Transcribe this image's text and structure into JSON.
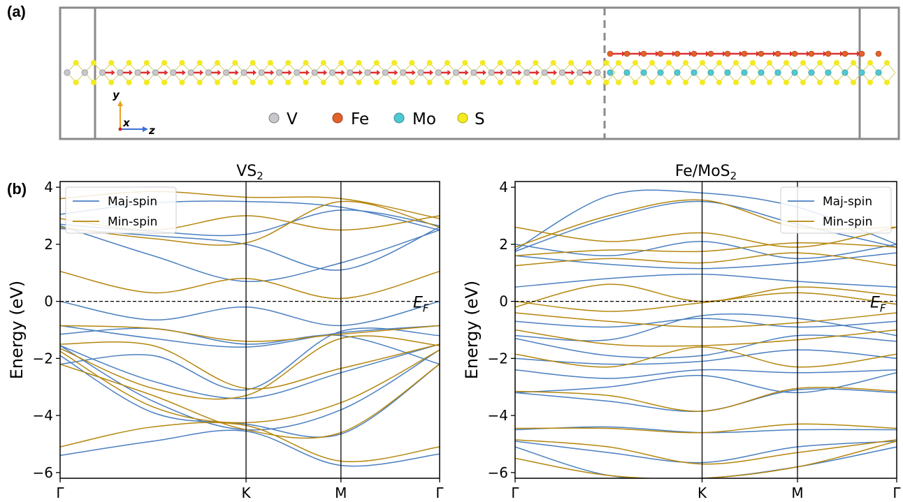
{
  "panel_labels": {
    "a": "(a)",
    "b": "(b)"
  },
  "structure": {
    "axes": {
      "y": "y",
      "x": "x",
      "z": "z"
    },
    "legend": [
      {
        "symbol": "V",
        "label": "V",
        "color": "#c8c8cc"
      },
      {
        "symbol": "Fe",
        "label": "Fe",
        "color": "#e2622a"
      },
      {
        "symbol": "Mo",
        "label": "Mo",
        "color": "#4fc9d4"
      },
      {
        "symbol": "S",
        "label": "S",
        "color": "#f3ea21"
      }
    ]
  },
  "colors": {
    "maj": "#4a7fc0",
    "min": "#b5860d"
  },
  "chart_data": [
    {
      "type": "line",
      "title": "VS",
      "title_sub": "2",
      "ylabel": "Energy (eV)",
      "ylim": [
        -6.2,
        4.2
      ],
      "yticks": [
        -6,
        -4,
        -2,
        0,
        2,
        4
      ],
      "ytick_labels": [
        "−6",
        "−4",
        "−2",
        "0",
        "2",
        "4"
      ],
      "kpath_labels": [
        "Γ",
        "K",
        "M",
        "Γ"
      ],
      "kpath_positions": [
        0,
        0.49,
        0.74,
        1.0
      ],
      "fermi_label": "E",
      "fermi_sub": "F",
      "fermi_level": 0,
      "legend": {
        "maj": "Maj-spin",
        "min": "Min-spin",
        "position": "top-left"
      },
      "series": [
        {
          "spin": "maj",
          "y": [
            2.65,
            1.6,
            0.7,
            1.35,
            2.5
          ]
        },
        {
          "spin": "maj",
          "y": [
            2.55,
            2.3,
            2.0,
            1.1,
            2.6
          ]
        },
        {
          "spin": "maj",
          "y": [
            2.7,
            2.45,
            2.35,
            3.2,
            2.65
          ]
        },
        {
          "spin": "maj",
          "y": [
            3.05,
            3.45,
            3.5,
            3.3,
            2.5
          ]
        },
        {
          "spin": "maj",
          "y": [
            0.0,
            -0.65,
            -0.2,
            -0.85,
            0.0
          ]
        },
        {
          "spin": "maj",
          "y": [
            -0.85,
            -1.3,
            -1.6,
            -1.1,
            -0.85
          ]
        },
        {
          "spin": "maj",
          "y": [
            -1.15,
            -0.95,
            -1.5,
            -1.2,
            -2.2
          ]
        },
        {
          "spin": "maj",
          "y": [
            -2.2,
            -1.9,
            -3.1,
            -1.05,
            -1.2
          ]
        },
        {
          "spin": "maj",
          "y": [
            -1.55,
            -2.8,
            -3.4,
            -2.5,
            -1.5
          ]
        },
        {
          "spin": "maj",
          "y": [
            -1.55,
            -3.5,
            -4.5,
            -3.8,
            -1.7
          ]
        },
        {
          "spin": "maj",
          "y": [
            -1.9,
            -3.9,
            -4.3,
            -4.65,
            -2.2
          ]
        },
        {
          "spin": "maj",
          "y": [
            -5.4,
            -4.9,
            -4.55,
            -5.75,
            -5.35
          ]
        },
        {
          "spin": "min",
          "y": [
            1.05,
            0.3,
            0.8,
            0.1,
            1.05
          ]
        },
        {
          "spin": "min",
          "y": [
            2.9,
            2.5,
            3.0,
            2.5,
            3.0
          ]
        },
        {
          "spin": "min",
          "y": [
            2.6,
            2.2,
            2.05,
            3.5,
            2.6
          ]
        },
        {
          "spin": "min",
          "y": [
            3.6,
            3.85,
            3.65,
            3.6,
            2.9
          ]
        },
        {
          "spin": "min",
          "y": [
            -0.85,
            -0.95,
            -1.4,
            -1.15,
            -0.85
          ]
        },
        {
          "spin": "min",
          "y": [
            -1.5,
            -1.55,
            -3.05,
            -2.35,
            -1.5
          ]
        },
        {
          "spin": "min",
          "y": [
            -1.65,
            -3.05,
            -3.3,
            -1.3,
            -1.55
          ]
        },
        {
          "spin": "min",
          "y": [
            -1.75,
            -3.7,
            -4.25,
            -3.55,
            -1.7
          ]
        },
        {
          "spin": "min",
          "y": [
            -2.2,
            -3.3,
            -4.5,
            -4.6,
            -2.2
          ]
        },
        {
          "spin": "min",
          "y": [
            -5.1,
            -4.4,
            -4.35,
            -5.6,
            -5.1
          ]
        }
      ]
    },
    {
      "type": "line",
      "title": "Fe/MoS",
      "title_sub": "2",
      "ylabel": "Energy (eV)",
      "ylim": [
        -6.2,
        4.2
      ],
      "yticks": [
        -6,
        -4,
        -2,
        0,
        2,
        4
      ],
      "ytick_labels": [
        "−6",
        "−4",
        "−2",
        "0",
        "2",
        "4"
      ],
      "kpath_labels": [
        "Γ",
        "K",
        "M",
        "Γ"
      ],
      "kpath_positions": [
        0,
        0.49,
        0.74,
        1.0
      ],
      "fermi_label": "E",
      "fermi_sub": "F",
      "fermi_level": 0,
      "legend": {
        "maj": "Maj-spin",
        "min": "Min-spin",
        "position": "top-right"
      },
      "series": [
        {
          "spin": "maj",
          "y": [
            0.5,
            0.8,
            0.95,
            0.7,
            0.5
          ]
        },
        {
          "spin": "maj",
          "y": [
            1.6,
            1.3,
            1.15,
            1.35,
            1.7
          ]
        },
        {
          "spin": "maj",
          "y": [
            2.0,
            1.6,
            2.1,
            1.5,
            2.0
          ]
        },
        {
          "spin": "maj",
          "y": [
            1.75,
            2.9,
            3.5,
            2.7,
            1.9
          ]
        },
        {
          "spin": "maj",
          "y": [
            1.8,
            3.7,
            3.8,
            3.3,
            2.0
          ]
        },
        {
          "spin": "maj",
          "y": [
            -0.7,
            -0.9,
            -0.6,
            -0.9,
            -0.7
          ]
        },
        {
          "spin": "maj",
          "y": [
            -1.2,
            -1.35,
            -0.5,
            -0.6,
            -1.2
          ]
        },
        {
          "spin": "maj",
          "y": [
            -1.3,
            -1.9,
            -1.9,
            -1.2,
            -1.4
          ]
        },
        {
          "spin": "maj",
          "y": [
            -2.0,
            -2.2,
            -2.1,
            -1.7,
            -2.0
          ]
        },
        {
          "spin": "maj",
          "y": [
            -2.4,
            -2.7,
            -2.4,
            -2.5,
            -2.4
          ]
        },
        {
          "spin": "maj",
          "y": [
            -3.2,
            -3.0,
            -2.6,
            -3.2,
            -2.5
          ]
        },
        {
          "spin": "maj",
          "y": [
            -3.2,
            -3.5,
            -3.85,
            -3.1,
            -3.2
          ]
        },
        {
          "spin": "maj",
          "y": [
            -4.5,
            -4.4,
            -4.6,
            -4.5,
            -4.5
          ]
        },
        {
          "spin": "maj",
          "y": [
            -4.9,
            -5.3,
            -5.65,
            -5.1,
            -4.9
          ]
        },
        {
          "spin": "maj",
          "y": [
            -5.1,
            -6.1,
            -6.2,
            -5.8,
            -5.1
          ]
        },
        {
          "spin": "min",
          "y": [
            -0.2,
            0.6,
            0.0,
            0.5,
            0.2
          ]
        },
        {
          "spin": "min",
          "y": [
            1.25,
            1.5,
            1.35,
            1.7,
            1.25
          ]
        },
        {
          "spin": "min",
          "y": [
            2.6,
            2.1,
            2.4,
            1.9,
            2.6
          ]
        },
        {
          "spin": "min",
          "y": [
            1.9,
            3.0,
            3.55,
            2.6,
            2.6
          ]
        },
        {
          "spin": "min",
          "y": [
            1.6,
            1.8,
            1.75,
            2.05,
            1.9
          ]
        },
        {
          "spin": "min",
          "y": [
            0.0,
            -0.35,
            -0.05,
            0.3,
            -0.1
          ]
        },
        {
          "spin": "min",
          "y": [
            -0.4,
            -0.7,
            -0.9,
            -0.75,
            -0.4
          ]
        },
        {
          "spin": "min",
          "y": [
            -1.0,
            -1.5,
            -1.55,
            -1.35,
            -1.0
          ]
        },
        {
          "spin": "min",
          "y": [
            -1.85,
            -2.3,
            -1.6,
            -2.3,
            -1.85
          ]
        },
        {
          "spin": "min",
          "y": [
            -3.15,
            -3.3,
            -3.85,
            -3.05,
            -3.15
          ]
        },
        {
          "spin": "min",
          "y": [
            -4.45,
            -4.45,
            -4.6,
            -4.3,
            -4.45
          ]
        },
        {
          "spin": "min",
          "y": [
            -4.85,
            -5.1,
            -5.7,
            -5.3,
            -4.85
          ]
        },
        {
          "spin": "min",
          "y": [
            -5.5,
            -6.1,
            -6.2,
            -5.8,
            -4.9
          ]
        }
      ]
    }
  ]
}
